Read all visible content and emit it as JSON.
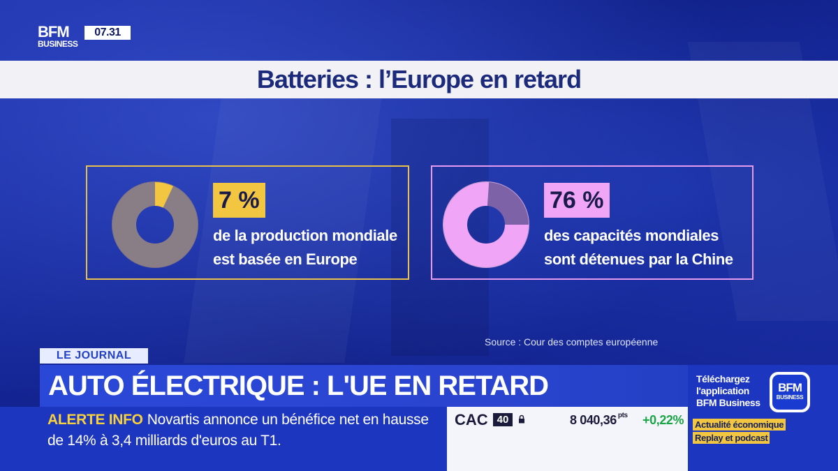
{
  "channel": {
    "logo_line1": "BFM",
    "logo_line2": "BUSINESS",
    "clock": "07.31"
  },
  "slide": {
    "title": "Batteries : l’Europe en retard",
    "source": "Source : Cour des comptes européenne",
    "stats": [
      {
        "percent_label": "7 %",
        "value": 7,
        "line1": "de la production mondiale",
        "line2": "est basée en Europe",
        "accent_color": "#f3c641"
      },
      {
        "percent_label": "76 %",
        "value": 76,
        "line1": "des capacités mondiales",
        "line2": "sont détenues par la Chine",
        "accent_color": "#f0a5f6"
      }
    ]
  },
  "lower_third": {
    "program": "LE JOURNAL",
    "headline": "AUTO ÉLECTRIQUE : L'UE EN RETARD",
    "alert_label": "ALERTE INFO",
    "alert_line1": "Novartis annonce un bénéfice net en hausse",
    "alert_line2": "de 14% à 3,4 milliards d'euros au T1."
  },
  "ticker": {
    "name": "CAC",
    "badge": "40",
    "value": "8 040,36",
    "unit": "pts",
    "change": "+0,22%",
    "change_color": "#1aa546"
  },
  "promo": {
    "line1": "Téléchargez",
    "line2": "l'application",
    "line3": "BFM Business",
    "logo_line1": "BFM",
    "logo_line2": "BUSINESS",
    "tag1": "Actualité économique",
    "tag2": "Replay et podcast"
  }
}
